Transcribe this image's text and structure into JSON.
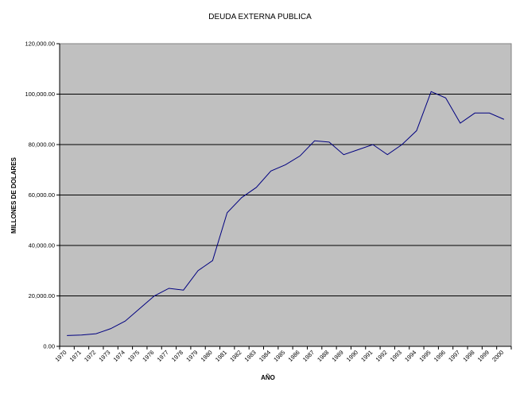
{
  "chart_data": {
    "type": "line",
    "title": "DEUDA EXTERNA PUBLICA",
    "xlabel": "AÑO",
    "ylabel": "MILLONES DE DOLARES",
    "ylim": [
      0,
      120000
    ],
    "yticks": [
      0,
      20000,
      40000,
      60000,
      80000,
      100000,
      120000
    ],
    "ytick_labels": [
      "0.00",
      "20,000.00",
      "40,000.00",
      "60,000.00",
      "80,000.00",
      "100,000.00",
      "120,000.00"
    ],
    "categories": [
      "1970",
      "1971",
      "1972",
      "1973",
      "1974",
      "1975",
      "1976",
      "1977",
      "1978",
      "1979",
      "1980",
      "1981",
      "1982",
      "1983",
      "1984",
      "1985",
      "1986",
      "1987",
      "1988",
      "1989",
      "1990",
      "1991",
      "1992",
      "1993",
      "1994",
      "1995",
      "1996",
      "1997",
      "1998",
      "1999",
      "2000"
    ],
    "series": [
      {
        "values": [
          4300,
          4500,
          5000,
          7000,
          10000,
          15000,
          20000,
          23000,
          22300,
          30000,
          34000,
          53000,
          59000,
          63000,
          69500,
          72000,
          75500,
          81500,
          81000,
          76000,
          78000,
          80000,
          76000,
          80000,
          85500,
          101000,
          98500,
          88500,
          92500,
          92500,
          90000
        ]
      }
    ],
    "grid": true,
    "legend": "none",
    "colors": {
      "plot_background": "#c0c0c0",
      "line": "#000080",
      "gridline": "#000000"
    }
  }
}
